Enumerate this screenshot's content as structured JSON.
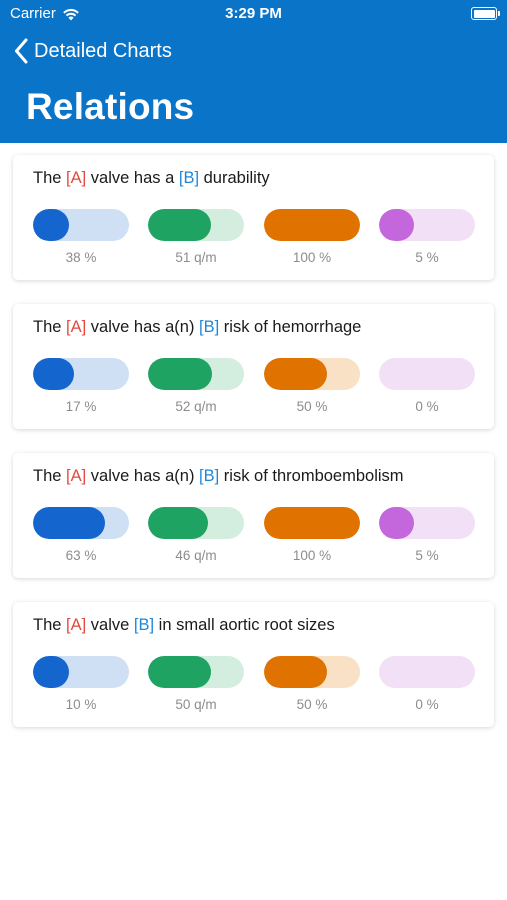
{
  "status_bar": {
    "carrier": "Carrier",
    "time": "3:29 PM"
  },
  "nav": {
    "back_label": "Detailed Charts",
    "title": "Relations"
  },
  "colors": {
    "header": "#0a74c9",
    "tag_a": "#e04a3f",
    "tag_b": "#1f87d8",
    "bars": [
      {
        "fill": "#1565cf",
        "track": "#cfe0f4"
      },
      {
        "fill": "#1fa363",
        "track": "#d3eedf"
      },
      {
        "fill": "#e07200",
        "track": "#f9e1c6"
      },
      {
        "fill": "#c466dc",
        "track": "#f2e0f7"
      }
    ]
  },
  "cards": [
    {
      "parts": [
        "The ",
        "[A]",
        " valve has a ",
        "[B]",
        " durability"
      ],
      "metrics": [
        {
          "label": "38 %",
          "fraction": 0.38
        },
        {
          "label": "51 q/m",
          "fraction": 0.66
        },
        {
          "label": "100 %",
          "fraction": 1.0
        },
        {
          "label": "5 %",
          "fraction": 0.36
        }
      ]
    },
    {
      "parts": [
        "The ",
        "[A]",
        " valve has a(n) ",
        "[B]",
        " risk of hemorrhage"
      ],
      "metrics": [
        {
          "label": "17 %",
          "fraction": 0.43
        },
        {
          "label": "52 q/m",
          "fraction": 0.67
        },
        {
          "label": "50 %",
          "fraction": 0.66
        },
        {
          "label": "0 %",
          "fraction": 0
        }
      ]
    },
    {
      "parts": [
        "The ",
        "[A]",
        " valve has a(n) ",
        "[B]",
        " risk of thromboembolism"
      ],
      "metrics": [
        {
          "label": "63 %",
          "fraction": 0.75
        },
        {
          "label": "46 q/m",
          "fraction": 0.63
        },
        {
          "label": "100 %",
          "fraction": 1.0
        },
        {
          "label": "5 %",
          "fraction": 0.36
        }
      ]
    },
    {
      "parts": [
        "The ",
        "[A]",
        " valve ",
        "[B]",
        " in small aortic root sizes"
      ],
      "metrics": [
        {
          "label": "10 %",
          "fraction": 0.38
        },
        {
          "label": "50 q/m",
          "fraction": 0.66
        },
        {
          "label": "50 %",
          "fraction": 0.66
        },
        {
          "label": "0 %",
          "fraction": 0
        }
      ]
    }
  ]
}
